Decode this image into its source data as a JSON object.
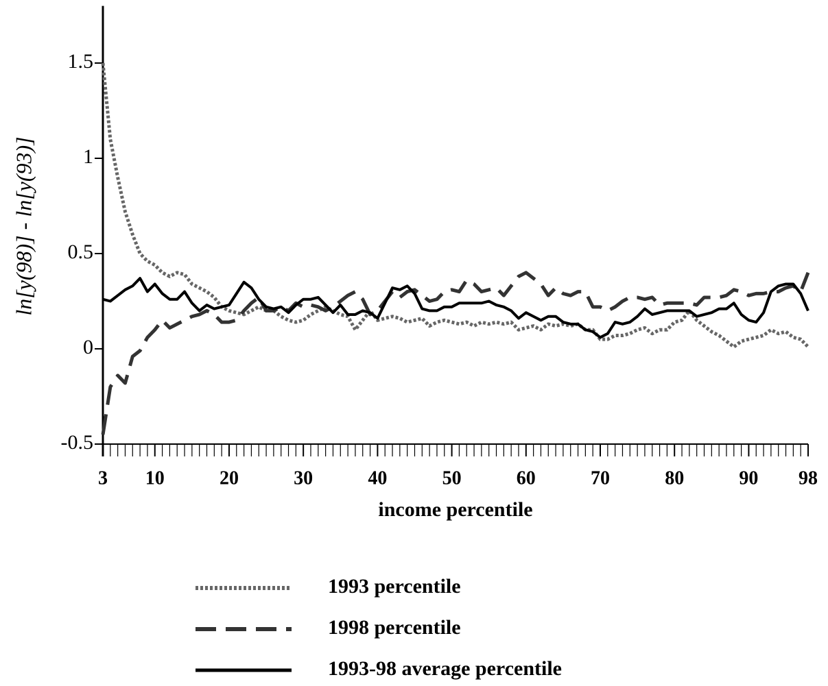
{
  "chart_data": {
    "type": "line",
    "x_label": "income percentile",
    "y_label": "ln[y(98)] - ln[y(93)]",
    "x": [
      3,
      4,
      5,
      6,
      7,
      8,
      9,
      10,
      11,
      12,
      13,
      14,
      15,
      16,
      17,
      18,
      19,
      20,
      21,
      22,
      23,
      24,
      25,
      26,
      27,
      28,
      29,
      30,
      31,
      32,
      33,
      34,
      35,
      36,
      37,
      38,
      39,
      40,
      41,
      42,
      43,
      44,
      45,
      46,
      47,
      48,
      49,
      50,
      51,
      52,
      53,
      54,
      55,
      56,
      57,
      58,
      59,
      60,
      61,
      62,
      63,
      64,
      65,
      66,
      67,
      68,
      69,
      70,
      71,
      72,
      73,
      74,
      75,
      76,
      77,
      78,
      79,
      80,
      81,
      82,
      83,
      84,
      85,
      86,
      87,
      88,
      89,
      90,
      91,
      92,
      93,
      94,
      95,
      96,
      97,
      98
    ],
    "xlim": [
      3,
      98
    ],
    "xticks": [
      3,
      10,
      20,
      30,
      40,
      50,
      60,
      70,
      80,
      90,
      98
    ],
    "ylim": [
      -0.5,
      1.8
    ],
    "yticks": [
      -0.5,
      0,
      0.5,
      1,
      1.5
    ],
    "legend": "bottom",
    "series": [
      {
        "name": "1993 percentile",
        "color": "#666666",
        "line_style": "dotted",
        "values": [
          1.5,
          1.1,
          0.9,
          0.72,
          0.6,
          0.5,
          0.46,
          0.44,
          0.4,
          0.38,
          0.4,
          0.39,
          0.34,
          0.32,
          0.3,
          0.27,
          0.22,
          0.2,
          0.19,
          0.18,
          0.2,
          0.22,
          0.2,
          0.2,
          0.17,
          0.15,
          0.14,
          0.15,
          0.18,
          0.2,
          0.22,
          0.2,
          0.18,
          0.17,
          0.1,
          0.15,
          0.2,
          0.15,
          0.16,
          0.17,
          0.16,
          0.14,
          0.15,
          0.16,
          0.12,
          0.14,
          0.15,
          0.14,
          0.13,
          0.14,
          0.12,
          0.14,
          0.13,
          0.14,
          0.13,
          0.14,
          0.1,
          0.11,
          0.12,
          0.1,
          0.13,
          0.12,
          0.13,
          0.12,
          0.13,
          0.1,
          0.1,
          0.05,
          0.05,
          0.07,
          0.07,
          0.08,
          0.1,
          0.11,
          0.08,
          0.1,
          0.1,
          0.14,
          0.15,
          0.2,
          0.15,
          0.12,
          0.09,
          0.07,
          0.04,
          0.01,
          0.04,
          0.05,
          0.06,
          0.07,
          0.1,
          0.08,
          0.09,
          0.06,
          0.05,
          0.01
        ]
      },
      {
        "name": "1998 percentile",
        "color": "#333333",
        "line_style": "dashed",
        "values": [
          -0.45,
          -0.2,
          -0.14,
          -0.18,
          -0.04,
          -0.01,
          0.06,
          0.1,
          0.15,
          0.11,
          0.13,
          0.15,
          0.17,
          0.18,
          0.2,
          0.18,
          0.14,
          0.14,
          0.15,
          0.2,
          0.24,
          0.27,
          0.2,
          0.2,
          0.22,
          0.2,
          0.24,
          0.22,
          0.23,
          0.22,
          0.2,
          0.22,
          0.25,
          0.28,
          0.3,
          0.26,
          0.18,
          0.2,
          0.25,
          0.3,
          0.27,
          0.3,
          0.31,
          0.28,
          0.25,
          0.26,
          0.3,
          0.31,
          0.3,
          0.36,
          0.34,
          0.3,
          0.31,
          0.32,
          0.28,
          0.33,
          0.38,
          0.4,
          0.37,
          0.34,
          0.28,
          0.32,
          0.29,
          0.28,
          0.3,
          0.3,
          0.22,
          0.22,
          0.2,
          0.22,
          0.25,
          0.27,
          0.27,
          0.26,
          0.27,
          0.23,
          0.24,
          0.24,
          0.24,
          0.24,
          0.23,
          0.27,
          0.27,
          0.27,
          0.28,
          0.31,
          0.3,
          0.28,
          0.29,
          0.29,
          0.3,
          0.3,
          0.32,
          0.33,
          0.3,
          0.4
        ]
      },
      {
        "name": "1993-98 average percentile",
        "color": "#000000",
        "line_style": "solid",
        "values": [
          0.26,
          0.25,
          0.28,
          0.31,
          0.33,
          0.37,
          0.3,
          0.34,
          0.29,
          0.26,
          0.26,
          0.3,
          0.24,
          0.2,
          0.23,
          0.21,
          0.22,
          0.23,
          0.29,
          0.35,
          0.32,
          0.26,
          0.22,
          0.21,
          0.22,
          0.19,
          0.23,
          0.26,
          0.26,
          0.27,
          0.23,
          0.19,
          0.23,
          0.18,
          0.18,
          0.2,
          0.19,
          0.16,
          0.24,
          0.32,
          0.31,
          0.33,
          0.29,
          0.21,
          0.2,
          0.2,
          0.22,
          0.22,
          0.24,
          0.24,
          0.24,
          0.24,
          0.25,
          0.23,
          0.22,
          0.2,
          0.16,
          0.19,
          0.17,
          0.15,
          0.17,
          0.17,
          0.14,
          0.13,
          0.13,
          0.1,
          0.09,
          0.06,
          0.08,
          0.14,
          0.13,
          0.14,
          0.17,
          0.21,
          0.18,
          0.19,
          0.2,
          0.2,
          0.2,
          0.2,
          0.17,
          0.18,
          0.19,
          0.21,
          0.21,
          0.24,
          0.18,
          0.15,
          0.14,
          0.19,
          0.3,
          0.33,
          0.34,
          0.34,
          0.29,
          0.2
        ]
      }
    ]
  }
}
